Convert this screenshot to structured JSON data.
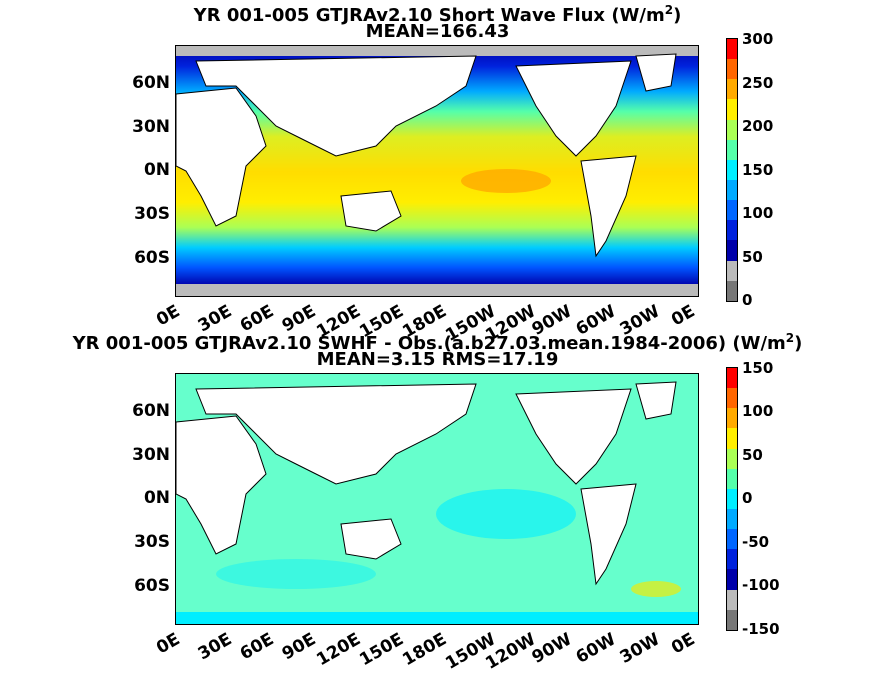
{
  "panels": [
    {
      "title_main": "YR 001-005 GTJRAv2.10  Short Wave Flux (W/m",
      "title_sup": "2",
      "title_tail": ")",
      "subtitle": "MEAN=166.43",
      "colorbar": {
        "ticks": [
          "300",
          "250",
          "200",
          "150",
          "100",
          "50",
          "0"
        ],
        "colors": [
          "#ff0000",
          "#ff6600",
          "#ffaa00",
          "#ffee00",
          "#aaff55",
          "#55ffaa",
          "#00eeff",
          "#00aaff",
          "#0066ff",
          "#0022dd",
          "#0000aa",
          "#bbbbbb",
          "#777777"
        ]
      }
    },
    {
      "title_main": "YR 001-005 GTJRAv2.10 SWHF - Obs.(a.b27.03.mean.1984-2006) (W/m",
      "title_sup": "2",
      "title_tail": ")",
      "subtitle": "MEAN=3.15 RMS=17.19",
      "colorbar": {
        "ticks": [
          "150",
          "100",
          "50",
          "0",
          "-50",
          "-100",
          "-150"
        ],
        "colors": [
          "#ff0000",
          "#ff6600",
          "#ffaa00",
          "#ffee00",
          "#aaff55",
          "#55ffaa",
          "#00eeff",
          "#00aaff",
          "#0066ff",
          "#0022dd",
          "#0000aa",
          "#bbbbbb",
          "#777777"
        ]
      }
    }
  ],
  "lat_labels": [
    "60N",
    "30N",
    "0N",
    "30S",
    "60S"
  ],
  "lon_labels": [
    "0E",
    "30E",
    "60E",
    "90E",
    "120E",
    "150E",
    "180E",
    "150W",
    "120W",
    "90W",
    "60W",
    "30W",
    "0E"
  ],
  "colors": {
    "land": "#ffffff",
    "ocean_mean": "#ffee00",
    "ocean_diff": "#55ffcc"
  }
}
